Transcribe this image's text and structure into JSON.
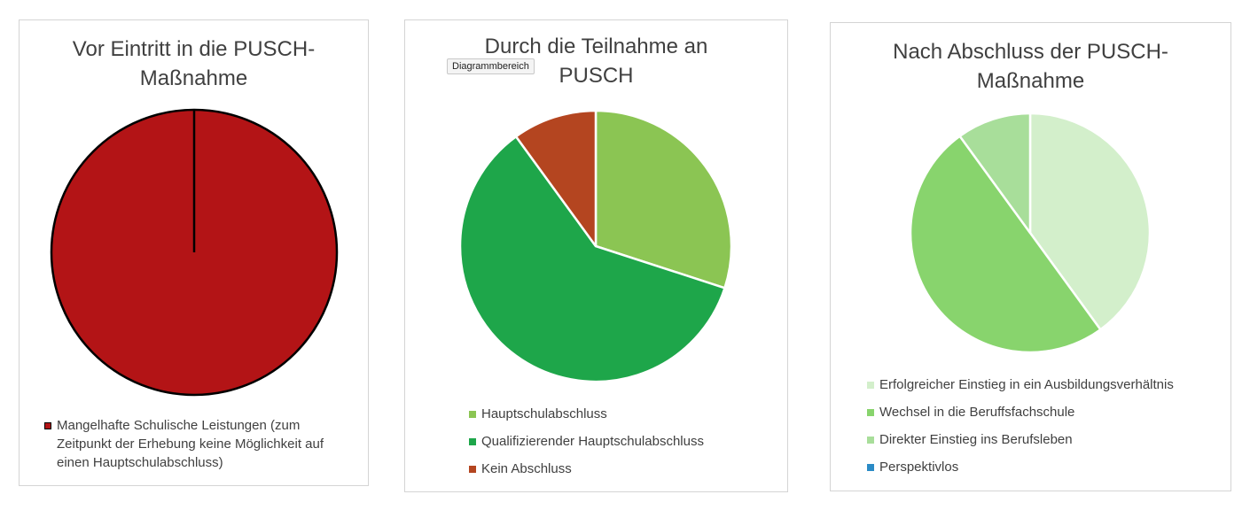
{
  "chart_data": [
    {
      "type": "pie",
      "title": "Vor Eintritt in die PUSCH-Maßnahme",
      "title_lines": [
        "Vor Eintritt in die PUSCH-",
        "Maßnahme"
      ],
      "categories": [
        "Mangelhafte Schulische Leistungen (zum Zeitpunkt der Erhebung keine Möglichkeit auf einen Hauptschulabschluss)"
      ],
      "values": [
        100
      ],
      "colors": [
        "#b31416"
      ],
      "legend_position": "bottom",
      "slice_border": "#000000"
    },
    {
      "type": "pie",
      "title": "Durch die Teilnahme an PUSCH",
      "title_lines": [
        "Durch die Teilnahme an",
        "PUSCH"
      ],
      "categories": [
        "Hauptschulabschluss",
        "Qualifizierender Hauptschulabschluss",
        "Kein Abschluss"
      ],
      "values": [
        30,
        60,
        10
      ],
      "colors": [
        "#8bc553",
        "#1ea64a",
        "#b44520"
      ],
      "legend_position": "bottom",
      "slice_border": "#ffffff"
    },
    {
      "type": "pie",
      "title": "Nach Abschluss der PUSCH-Maßnahme",
      "title_lines": [
        "Nach Abschluss der PUSCH-",
        "Maßnahme"
      ],
      "categories": [
        "Erfolgreicher Einstieg in ein Ausbildungsverhältnis",
        "Wechsel in die Beruffsfachschule",
        "Direkter Einstieg ins Berufsleben",
        "Perspektivlos"
      ],
      "values": [
        40,
        50,
        10,
        0
      ],
      "colors": [
        "#d3efcb",
        "#88d46d",
        "#a8de9a",
        "#2b8bc6"
      ],
      "legend_position": "bottom",
      "slice_border": "#ffffff"
    }
  ],
  "tooltip": {
    "label": "Diagrammbereich"
  }
}
